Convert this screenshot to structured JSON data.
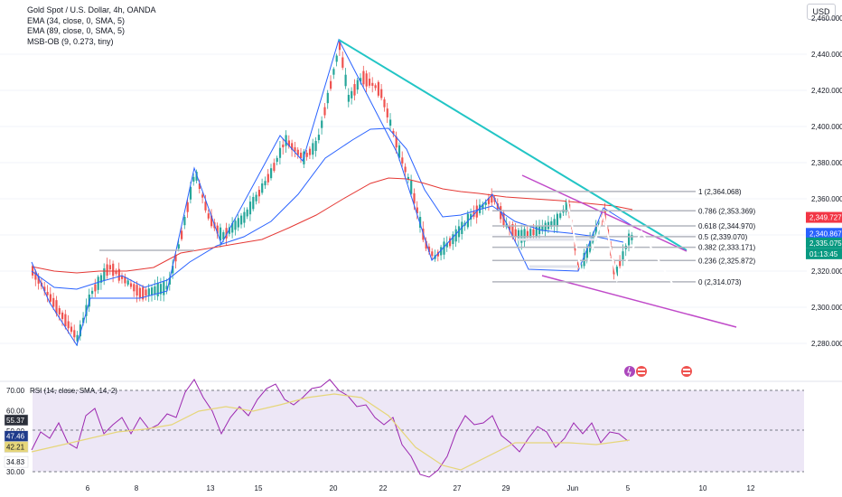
{
  "legend": {
    "title": "Gold Spot / U.S. Dollar, 4h, OANDA",
    "ema1": "EMA (34, close, 0, SMA, 5)",
    "ema2": "EMA (89, close, 0, SMA, 5)",
    "msb": "MSB-OB (9, 0.273, tiny)",
    "rsi": "RSI (14, close, SMA, 14, 2)"
  },
  "currency": "USD",
  "colors": {
    "up": "#26a69a",
    "down": "#ef5350",
    "ema1": "#2962ff",
    "ema2": "#e53935",
    "trend": "#22c5c5",
    "channel": "#c04ac9",
    "fib": "#b2b5be",
    "rsi": "#9c27b0",
    "rsi_ma": "#e6d67a",
    "rsi_bg": "#ede7f6",
    "projection": "#ffffff"
  },
  "price_axis": {
    "ticks": [
      "2,440.000",
      "2,420.000",
      "2,400.000",
      "2,380.000",
      "2,360.000",
      "2,320.000",
      "2,300.000",
      "2,280.000"
    ],
    "partial_top": "2,460.000",
    "tags": {
      "p1": "2,349.727",
      "p2": "2,340.867",
      "p3": "2,335.075",
      "countdown": "01:13:45"
    }
  },
  "rsi_axis": {
    "ticks": [
      "70.00",
      "60.00",
      "30.00"
    ],
    "tags": [
      "55.37",
      "47.46",
      "42.21",
      "34.83"
    ],
    "partial": "50.00"
  },
  "x_axis": [
    "6",
    "8",
    "13",
    "15",
    "20",
    "22",
    "27",
    "29",
    "Jun",
    "5",
    "10",
    "12"
  ],
  "fib": [
    {
      "label": "1 (2,364.068)"
    },
    {
      "label": "0.786 (2,353.369)"
    },
    {
      "label": "0.618 (2,344.970)"
    },
    {
      "label": "0.5 (2,339.070)"
    },
    {
      "label": "0.382 (2,333.171)"
    },
    {
      "label": "0.236 (2,325.872)"
    },
    {
      "label": "0 (2,314.073)"
    }
  ],
  "chart_data": {
    "type": "candlestick",
    "title": "Gold Spot / U.S. Dollar, 4h, OANDA",
    "ylim": [
      2270,
      2465
    ],
    "y_ticks": [
      2280,
      2300,
      2320,
      2360,
      2380,
      2400,
      2420,
      2440
    ],
    "x_ticks": [
      "6",
      "8",
      "13",
      "15",
      "20",
      "22",
      "27",
      "29",
      "Jun",
      "5",
      "10",
      "12"
    ],
    "fib_levels": [
      {
        "ratio": 1,
        "price": 2364.068
      },
      {
        "ratio": 0.786,
        "price": 2353.369
      },
      {
        "ratio": 0.618,
        "price": 2344.97
      },
      {
        "ratio": 0.5,
        "price": 2339.07
      },
      {
        "ratio": 0.382,
        "price": 2333.171
      },
      {
        "ratio": 0.236,
        "price": 2325.872
      },
      {
        "ratio": 0,
        "price": 2314.073
      }
    ],
    "last_price": 2335.075,
    "rsi": {
      "ylim": [
        30,
        70
      ],
      "ticks": [
        70,
        60,
        30
      ],
      "values": [
        55.37,
        47.46,
        42.21,
        34.83
      ]
    }
  }
}
